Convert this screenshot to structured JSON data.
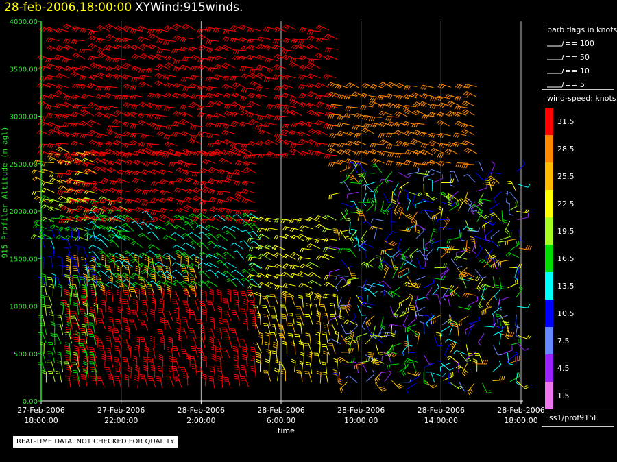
{
  "title": {
    "date": "28-feb-2006,18:00:00",
    "name": "XYWind:915winds."
  },
  "chart_data": {
    "type": "scatter",
    "subtype": "wind-barb time-height plot",
    "ylabel": "915 Profiler Altitude (m agl)",
    "xlabel": "time",
    "ylim": [
      0,
      4000
    ],
    "y_ticks": [
      "0.00",
      "500.00",
      "1000.00",
      "1500.00",
      "2000.00",
      "2500.00",
      "3000.00",
      "3500.00",
      "4000.00"
    ],
    "x_ticks": [
      {
        "date": "27-Feb-2006",
        "time": "18:00:00"
      },
      {
        "date": "27-Feb-2006",
        "time": "22:00:00"
      },
      {
        "date": "28-Feb-2006",
        "time": "2:00:00"
      },
      {
        "date": "28-Feb-2006",
        "time": "6:00:00"
      },
      {
        "date": "28-Feb-2006",
        "time": "10:00:00"
      },
      {
        "date": "28-Feb-2006",
        "time": "14:00:00"
      },
      {
        "date": "28-Feb-2006",
        "time": "18:00:00"
      }
    ],
    "xlim_hours": [
      0,
      24
    ],
    "grid": true,
    "wind_regions": [
      {
        "hours": [
          0.5,
          15
        ],
        "alt": [
          2600,
          3950
        ],
        "speed": 31.5,
        "dir": "west"
      },
      {
        "hours": [
          15,
          22
        ],
        "alt": [
          2500,
          3300
        ],
        "speed": 28.5,
        "dir": "west"
      },
      {
        "hours": [
          0.2,
          3
        ],
        "alt": [
          2100,
          2600
        ],
        "speed": 24,
        "dir": "west"
      },
      {
        "hours": [
          0.2,
          4.5
        ],
        "alt": [
          1700,
          2100
        ],
        "speed": 18,
        "dir": "west"
      },
      {
        "hours": [
          1.5,
          11
        ],
        "alt": [
          1900,
          2600
        ],
        "speed": 31.5,
        "dir": "west"
      },
      {
        "hours": [
          1.5,
          11
        ],
        "alt": [
          150,
          1100
        ],
        "speed": 31.5,
        "dir": "south"
      },
      {
        "hours": [
          1.5,
          8
        ],
        "alt": [
          1100,
          1400
        ],
        "speed": 26,
        "dir": "south"
      },
      {
        "hours": [
          3,
          11
        ],
        "alt": [
          1200,
          1900
        ],
        "speed": 15,
        "dir": "southwest"
      },
      {
        "hours": [
          0.2,
          3
        ],
        "alt": [
          1200,
          1700
        ],
        "speed": 11,
        "dir": "south"
      },
      {
        "hours": [
          0.2,
          3
        ],
        "alt": [
          200,
          1200
        ],
        "speed": 18,
        "dir": "south"
      },
      {
        "hours": [
          11,
          15
        ],
        "alt": [
          1100,
          1900
        ],
        "speed": 22,
        "dir": "west"
      },
      {
        "hours": [
          11,
          15
        ],
        "alt": [
          200,
          1000
        ],
        "speed": 24,
        "dir": "south"
      },
      {
        "hours": [
          15,
          24
        ],
        "alt": [
          200,
          2400
        ],
        "speed": 12,
        "dir": "mixed"
      }
    ]
  },
  "legend": {
    "flags_title": "barb flags in knots",
    "flags": [
      "== 100",
      "== 50",
      "== 10",
      "== 5"
    ],
    "speed_title": "wind-speed: knots",
    "speed_bins": [
      {
        "label": "31.5",
        "color": "#ff0000"
      },
      {
        "label": "28.5",
        "color": "#ff8800"
      },
      {
        "label": "25.5",
        "color": "#ffbb00"
      },
      {
        "label": "22.5",
        "color": "#ffff00"
      },
      {
        "label": "19.5",
        "color": "#a8ff22"
      },
      {
        "label": "16.5",
        "color": "#00dd00"
      },
      {
        "label": "13.5",
        "color": "#00ffff"
      },
      {
        "label": "10.5",
        "color": "#0000ff"
      },
      {
        "label": "7.5",
        "color": "#6688ff"
      },
      {
        "label": "4.5",
        "color": "#9922ff"
      },
      {
        "label": "1.5",
        "color": "#ee77ee"
      }
    ],
    "station": "iss1/prof915l"
  },
  "xlabel": "time",
  "note": "REAL-TIME DATA, NOT CHECKED FOR QUALITY"
}
